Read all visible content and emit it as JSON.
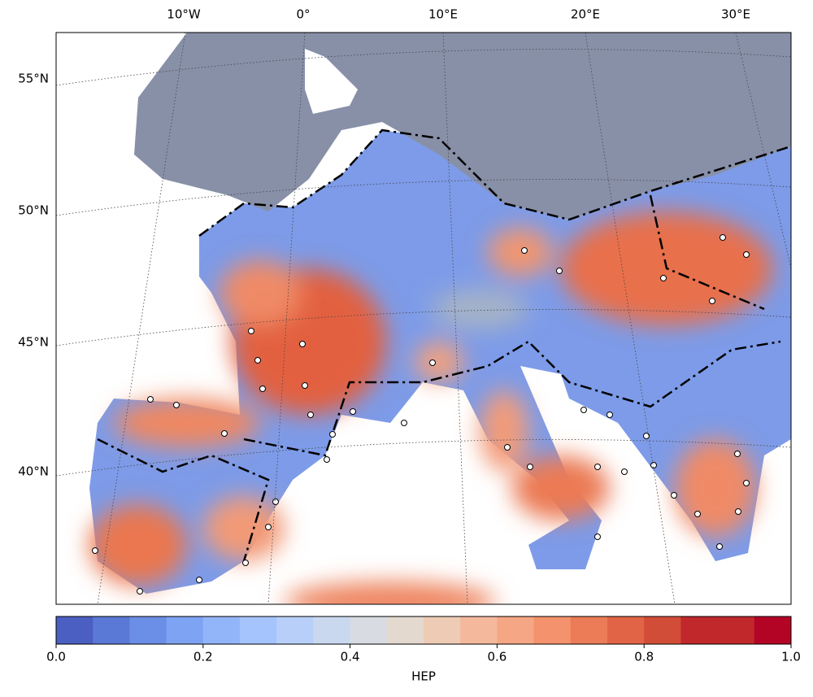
{
  "map": {
    "lon_labels": [
      "10°W",
      "0°",
      "10°E",
      "20°E",
      "30°E"
    ],
    "lat_labels": [
      "55°N",
      "50°N",
      "45°N",
      "40°N"
    ]
  },
  "colorbar": {
    "label": "HEP",
    "range": [
      0,
      1
    ],
    "ticks": [
      {
        "value": 0,
        "label": "0.0"
      },
      0.2,
      0.4,
      0.6,
      0.8,
      {
        "value": 1,
        "label": "1.0"
      }
    ],
    "colors": [
      "#4a5fc1",
      "#5a78d6",
      "#6b8ee6",
      "#7ea3f2",
      "#92b5fa",
      "#a5c4fe",
      "#b8d0f9",
      "#cad8ef",
      "#d8dce2",
      "#e4d9cf",
      "#eecbb5",
      "#f4b99c",
      "#f5a684",
      "#f3926d",
      "#ec7b58",
      "#e16446",
      "#d24d38",
      "#c0282b",
      "#c0282b",
      "#b40426"
    ]
  }
}
